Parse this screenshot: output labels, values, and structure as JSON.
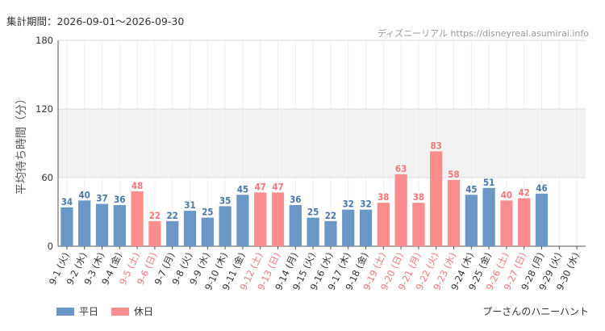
{
  "header": {
    "period_label": "集計期間：2026-09-01〜2026-09-30",
    "source_label": "ディズニーリアル https://disneyreal.asumirai.info"
  },
  "footer": {
    "attraction": "プーさんのハニーハント"
  },
  "colors": {
    "weekday": "#6a97c6",
    "holiday": "#fc8d8e",
    "weekday_text": "#4a78a8",
    "holiday_text": "#f0787a",
    "band": "#f2f2f2",
    "grid": "#dddddd"
  },
  "chart_data": {
    "type": "bar",
    "ylabel": "平均待ち時間（分）",
    "ylim": [
      0,
      180
    ],
    "yticks": [
      0,
      60,
      120,
      180
    ],
    "shaded_band": [
      60,
      120
    ],
    "legend": [
      {
        "name": "平日",
        "key": "weekday"
      },
      {
        "name": "休日",
        "key": "holiday"
      }
    ],
    "categories": [
      "9-1 (火)",
      "9-2 (水)",
      "9-3 (木)",
      "9-4 (金)",
      "9-5 (土)",
      "9-6 (日)",
      "9-7 (月)",
      "9-8 (火)",
      "9-9 (水)",
      "9-10 (木)",
      "9-11 (金)",
      "9-12 (土)",
      "9-13 (日)",
      "9-14 (月)",
      "9-15 (火)",
      "9-16 (水)",
      "9-17 (木)",
      "9-18 (金)",
      "9-19 (土)",
      "9-20 (日)",
      "9-21 (月)",
      "9-22 (火)",
      "9-23 (水)",
      "9-24 (木)",
      "9-25 (金)",
      "9-26 (土)",
      "9-27 (日)",
      "9-28 (月)",
      "9-29 (火)",
      "9-30 (水)"
    ],
    "values": [
      34,
      40,
      37,
      36,
      48,
      22,
      22,
      31,
      25,
      35,
      45,
      47,
      47,
      36,
      25,
      22,
      32,
      32,
      38,
      63,
      38,
      83,
      58,
      45,
      51,
      40,
      42,
      46,
      null,
      null
    ],
    "day_type": [
      "weekday",
      "weekday",
      "weekday",
      "weekday",
      "holiday",
      "holiday",
      "weekday",
      "weekday",
      "weekday",
      "weekday",
      "weekday",
      "holiday",
      "holiday",
      "weekday",
      "weekday",
      "weekday",
      "weekday",
      "weekday",
      "holiday",
      "holiday",
      "holiday",
      "holiday",
      "holiday",
      "weekday",
      "weekday",
      "holiday",
      "holiday",
      "weekday",
      "weekday",
      "weekday"
    ]
  }
}
